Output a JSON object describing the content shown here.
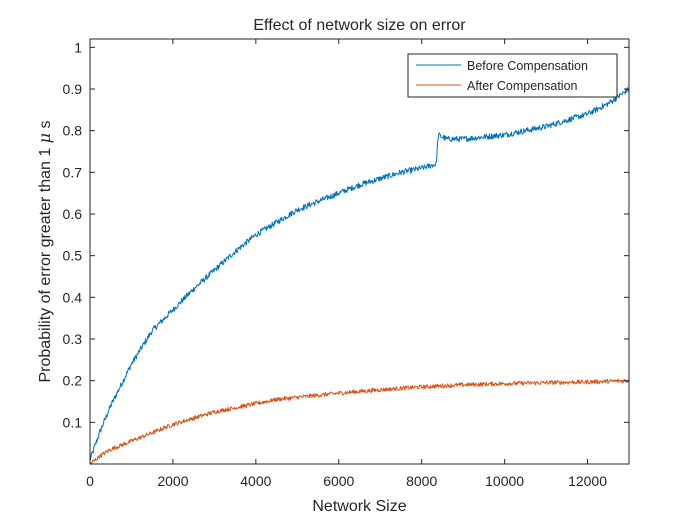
{
  "chart_data": {
    "type": "line",
    "title": "Effect of network size on error",
    "xlabel": "Network Size",
    "ylabel_prefix": "Probability of error greater than 1 ",
    "ylabel_symbol": "μ",
    "ylabel_suffix": " s",
    "xlim": [
      0,
      13000
    ],
    "ylim": [
      0,
      1.02
    ],
    "xticks": [
      0,
      2000,
      4000,
      6000,
      8000,
      10000,
      12000
    ],
    "xtick_labels": [
      "0",
      "2000",
      "4000",
      "6000",
      "8000",
      "10000",
      "12000"
    ],
    "yticks": [
      0.1,
      0.2,
      0.3,
      0.4,
      0.5,
      0.6,
      0.7,
      0.8,
      0.9,
      1
    ],
    "ytick_labels": [
      "0.1",
      "0.2",
      "0.3",
      "0.4",
      "0.5",
      "0.6",
      "0.7",
      "0.8",
      "0.9",
      "1"
    ],
    "grid": false,
    "legend_position": "top-right",
    "series": [
      {
        "name": "Before Compensation",
        "color": "#0072BD",
        "x": [
          0,
          250,
          500,
          750,
          1000,
          1250,
          1500,
          1750,
          2000,
          2500,
          3000,
          3500,
          4000,
          4500,
          5000,
          5500,
          6000,
          6500,
          7000,
          7500,
          8000,
          8350,
          8400,
          8600,
          9000,
          9500,
          10000,
          10500,
          11000,
          11500,
          12000,
          12500,
          13000
        ],
        "y": [
          0.01,
          0.08,
          0.14,
          0.19,
          0.24,
          0.28,
          0.32,
          0.345,
          0.37,
          0.42,
          0.465,
          0.51,
          0.55,
          0.58,
          0.61,
          0.63,
          0.65,
          0.67,
          0.685,
          0.7,
          0.71,
          0.72,
          0.79,
          0.78,
          0.78,
          0.785,
          0.79,
          0.8,
          0.81,
          0.825,
          0.84,
          0.865,
          0.9
        ]
      },
      {
        "name": "After Compensation",
        "color": "#D95319",
        "x": [
          0,
          250,
          500,
          1000,
          1500,
          2000,
          2500,
          3000,
          3500,
          4000,
          4500,
          5000,
          5500,
          6000,
          7000,
          8000,
          9000,
          10000,
          11000,
          12000,
          13000
        ],
        "y": [
          0.0,
          0.02,
          0.035,
          0.055,
          0.075,
          0.095,
          0.11,
          0.125,
          0.135,
          0.145,
          0.155,
          0.16,
          0.165,
          0.17,
          0.178,
          0.185,
          0.19,
          0.193,
          0.195,
          0.197,
          0.2
        ]
      }
    ]
  }
}
